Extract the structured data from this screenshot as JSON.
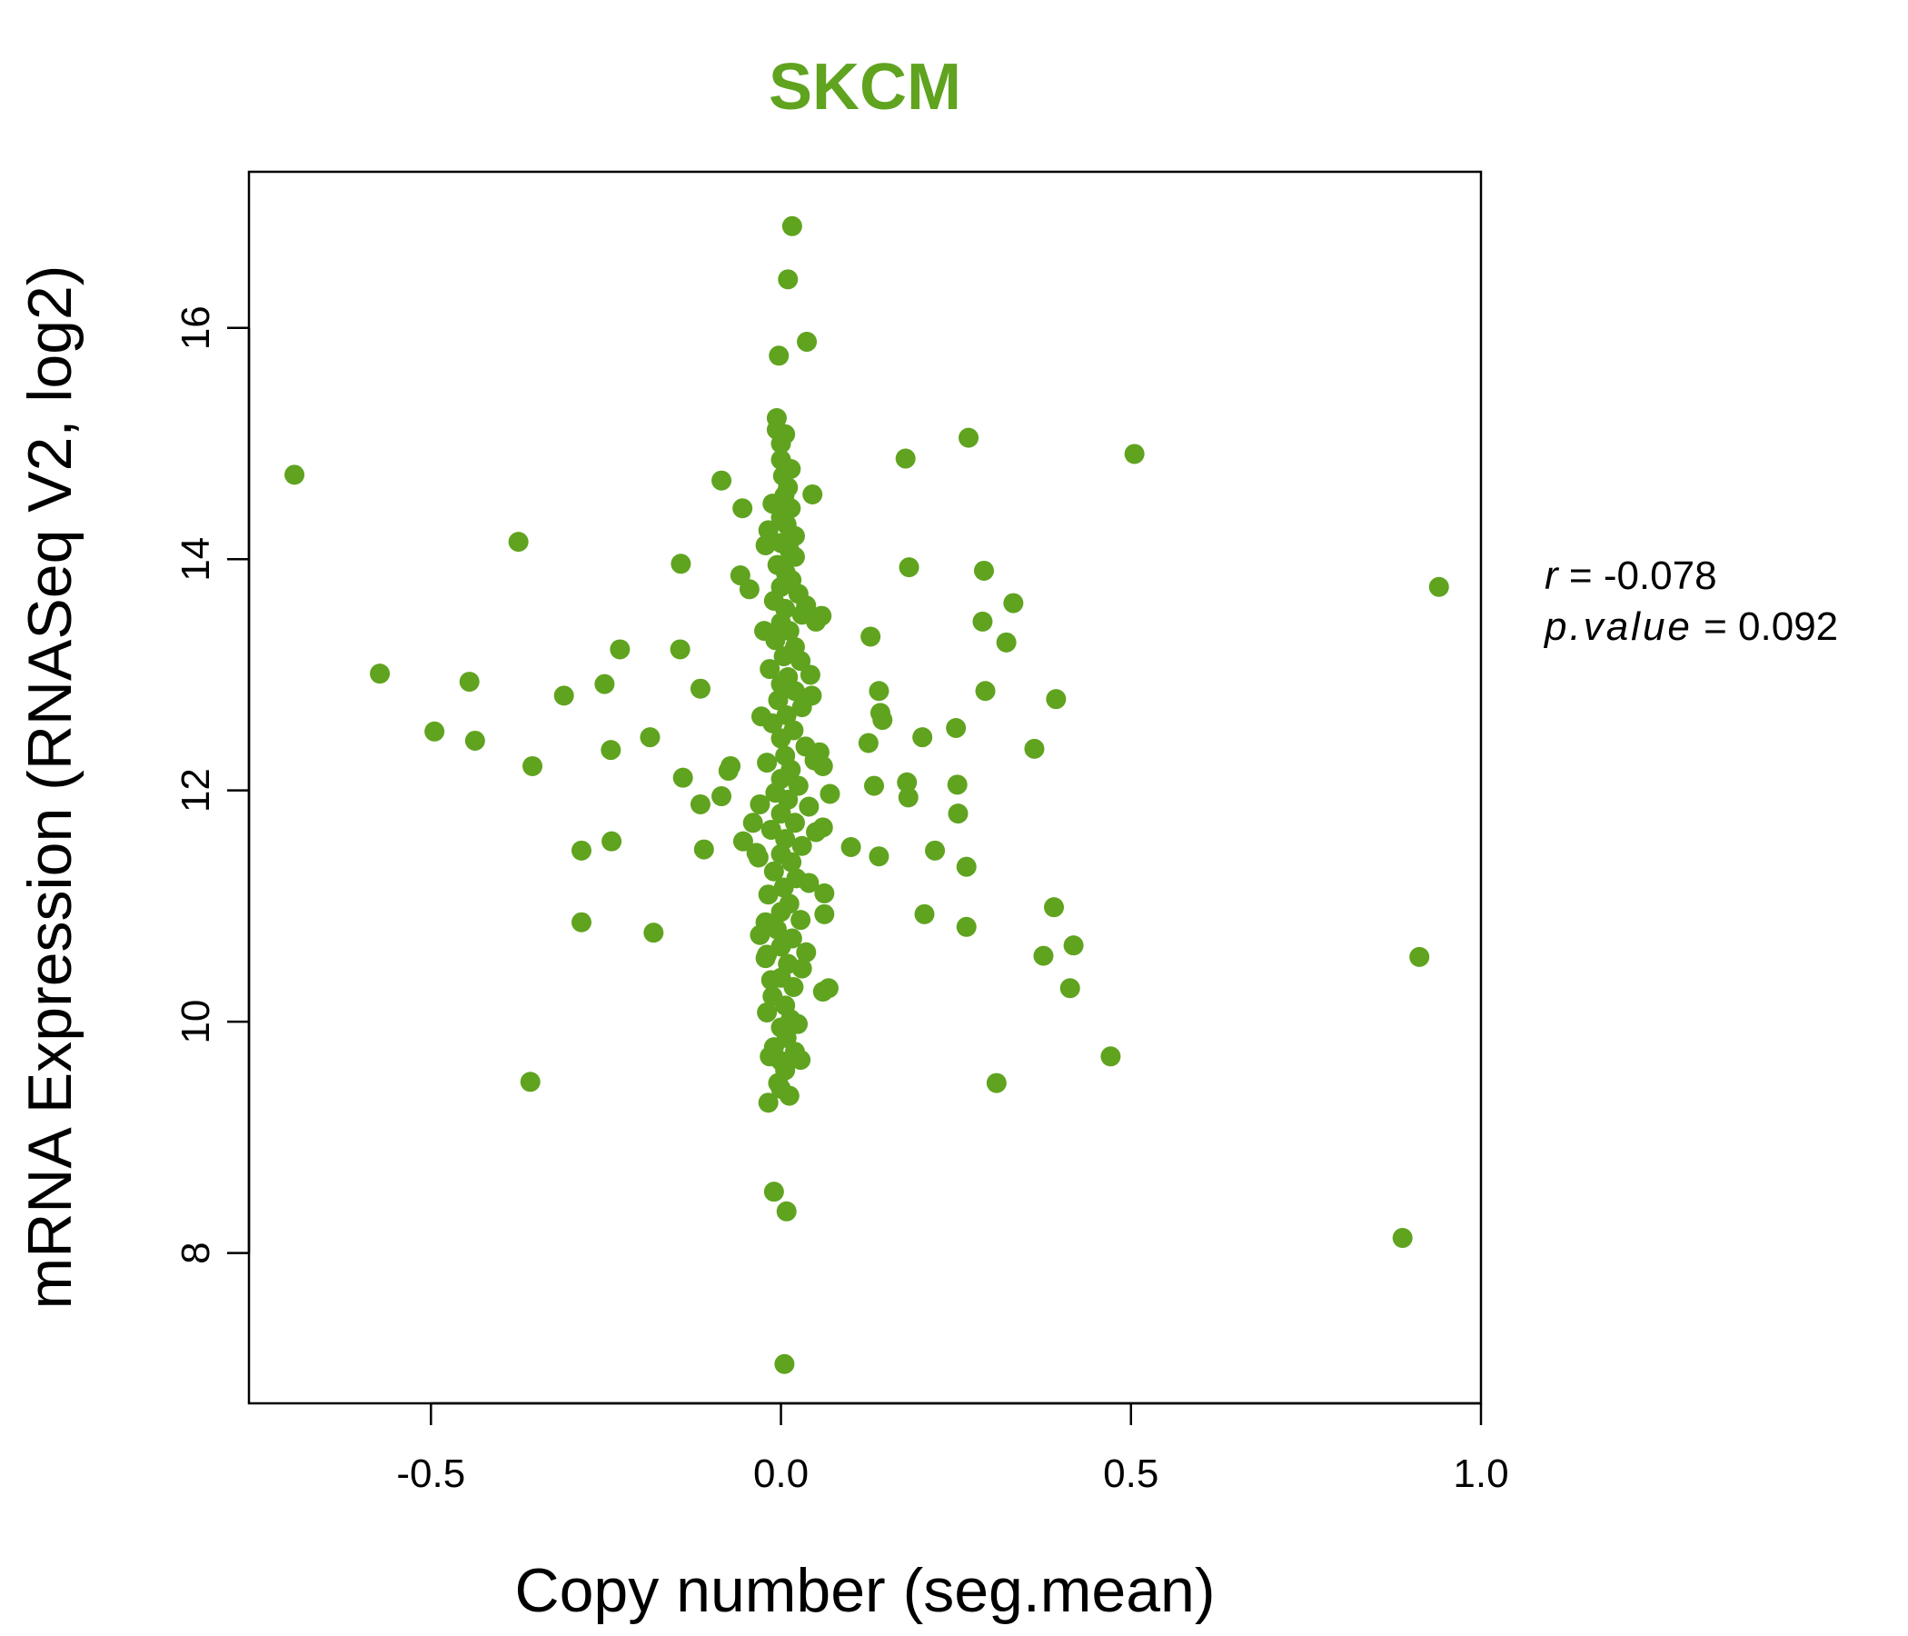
{
  "chart_data": {
    "type": "scatter",
    "title": "SKCM",
    "title_color": "#5fa31f",
    "point_color": "#5fa31f",
    "xlabel": "Copy number (seg.mean)",
    "ylabel": "mRNA Expression (RNASeq V2, log2)",
    "xlim": [
      -0.76,
      1.0
    ],
    "ylim": [
      6.7,
      17.35
    ],
    "x_ticks": [
      -0.5,
      0.0,
      0.5,
      1.0
    ],
    "x_tick_labels": [
      "-0.5",
      "0.0",
      "0.5",
      "1.0"
    ],
    "y_ticks": [
      8,
      10,
      12,
      14,
      16
    ],
    "y_tick_labels": [
      "8",
      "10",
      "12",
      "14",
      "16"
    ],
    "stats": {
      "r_label": "r",
      "r_value": "-0.078",
      "p_label": "p.value",
      "p_value": "0.092"
    },
    "points": [
      [
        0.016,
        16.88
      ],
      [
        0.01,
        16.42
      ],
      [
        0.037,
        15.88
      ],
      [
        -0.003,
        15.76
      ],
      [
        -0.006,
        15.22
      ],
      [
        0.006,
        15.08
      ],
      [
        0.0,
        15.0
      ],
      [
        0.0,
        14.86
      ],
      [
        0.003,
        14.72
      ],
      [
        0.01,
        14.62
      ],
      [
        0.005,
        14.55
      ],
      [
        -0.012,
        14.48
      ],
      [
        0.014,
        14.44
      ],
      [
        0.0,
        14.36
      ],
      [
        0.008,
        14.3
      ],
      [
        -0.018,
        14.25
      ],
      [
        0.02,
        14.2
      ],
      [
        0.0,
        14.14
      ],
      [
        0.012,
        14.08
      ],
      [
        0.02,
        14.02
      ],
      [
        -0.005,
        13.95
      ],
      [
        0.007,
        13.88
      ],
      [
        0.015,
        13.82
      ],
      [
        0.0,
        13.76
      ],
      [
        0.025,
        13.7
      ],
      [
        -0.01,
        13.64
      ],
      [
        0.006,
        13.57
      ],
      [
        0.03,
        13.52
      ],
      [
        0.0,
        13.45
      ],
      [
        0.012,
        13.38
      ],
      [
        -0.008,
        13.3
      ],
      [
        0.02,
        13.24
      ],
      [
        0.004,
        13.16
      ],
      [
        0.028,
        13.12
      ],
      [
        -0.016,
        13.05
      ],
      [
        0.01,
        12.98
      ],
      [
        0.042,
        13.0
      ],
      [
        0.0,
        12.92
      ],
      [
        0.02,
        12.86
      ],
      [
        -0.004,
        12.78
      ],
      [
        0.03,
        12.72
      ],
      [
        0.008,
        12.65
      ],
      [
        -0.012,
        12.58
      ],
      [
        0.018,
        12.52
      ],
      [
        0.0,
        12.45
      ],
      [
        0.035,
        12.38
      ],
      [
        0.006,
        12.3
      ],
      [
        -0.02,
        12.24
      ],
      [
        0.014,
        12.18
      ],
      [
        0.0,
        12.1
      ],
      [
        0.025,
        12.04
      ],
      [
        -0.008,
        11.98
      ],
      [
        0.01,
        11.92
      ],
      [
        0.04,
        11.86
      ],
      [
        0.0,
        11.8
      ],
      [
        0.02,
        11.72
      ],
      [
        -0.014,
        11.66
      ],
      [
        0.006,
        11.58
      ],
      [
        0.03,
        11.52
      ],
      [
        0.0,
        11.45
      ],
      [
        0.015,
        11.38
      ],
      [
        -0.01,
        11.3
      ],
      [
        0.022,
        11.24
      ],
      [
        0.004,
        11.16
      ],
      [
        -0.018,
        11.1
      ],
      [
        0.012,
        11.02
      ],
      [
        0.0,
        10.95
      ],
      [
        0.028,
        10.88
      ],
      [
        -0.006,
        10.8
      ],
      [
        0.016,
        10.72
      ],
      [
        0.0,
        10.65
      ],
      [
        -0.02,
        10.58
      ],
      [
        0.01,
        10.5
      ],
      [
        0.03,
        10.46
      ],
      [
        0.0,
        10.38
      ],
      [
        0.018,
        10.3
      ],
      [
        -0.012,
        10.22
      ],
      [
        0.006,
        10.14
      ],
      [
        -0.02,
        10.08
      ],
      [
        0.014,
        10.02
      ],
      [
        0.0,
        9.95
      ],
      [
        0.008,
        9.86
      ],
      [
        -0.01,
        9.78
      ],
      [
        0.02,
        9.74
      ],
      [
        0.0,
        9.66
      ],
      [
        0.028,
        9.67
      ],
      [
        0.006,
        9.58
      ],
      [
        -0.004,
        9.47
      ],
      [
        0.012,
        9.36
      ],
      [
        -0.018,
        9.3
      ],
      [
        0.0,
        9.42
      ],
      [
        -0.006,
        15.12
      ],
      [
        0.014,
        14.78
      ],
      [
        -0.022,
        14.12
      ],
      [
        0.036,
        13.6
      ],
      [
        -0.024,
        13.38
      ],
      [
        0.044,
        12.82
      ],
      [
        -0.028,
        12.64
      ],
      [
        0.048,
        12.26
      ],
      [
        -0.03,
        11.88
      ],
      [
        0.05,
        11.64
      ],
      [
        -0.032,
        11.42
      ],
      [
        0.04,
        11.2
      ],
      [
        -0.022,
        10.86
      ],
      [
        0.036,
        10.6
      ],
      [
        -0.014,
        10.36
      ],
      [
        0.024,
        9.98
      ],
      [
        -0.016,
        9.7
      ],
      [
        -0.01,
        8.53
      ],
      [
        0.008,
        8.36
      ],
      [
        0.005,
        7.04
      ],
      [
        -0.695,
        14.73
      ],
      [
        -0.573,
        13.01
      ],
      [
        -0.495,
        12.51
      ],
      [
        -0.445,
        12.94
      ],
      [
        -0.437,
        12.43
      ],
      [
        -0.375,
        14.15
      ],
      [
        -0.355,
        12.21
      ],
      [
        -0.358,
        9.48
      ],
      [
        -0.31,
        12.82
      ],
      [
        -0.285,
        11.48
      ],
      [
        -0.285,
        10.86
      ],
      [
        -0.252,
        12.92
      ],
      [
        -0.243,
        12.35
      ],
      [
        -0.242,
        11.56
      ],
      [
        -0.23,
        13.22
      ],
      [
        -0.187,
        12.46
      ],
      [
        -0.182,
        10.77
      ],
      [
        -0.143,
        13.96
      ],
      [
        -0.144,
        13.22
      ],
      [
        -0.14,
        12.11
      ],
      [
        -0.115,
        12.88
      ],
      [
        -0.115,
        11.88
      ],
      [
        -0.11,
        11.49
      ],
      [
        -0.085,
        14.68
      ],
      [
        -0.085,
        11.95
      ],
      [
        -0.075,
        12.17
      ],
      [
        -0.072,
        12.21
      ],
      [
        -0.058,
        13.86
      ],
      [
        -0.055,
        14.44
      ],
      [
        -0.054,
        11.56
      ],
      [
        -0.045,
        13.74
      ],
      [
        -0.04,
        11.72
      ],
      [
        -0.035,
        11.46
      ],
      [
        -0.03,
        10.75
      ],
      [
        -0.022,
        10.55
      ],
      [
        0.045,
        14.56
      ],
      [
        0.05,
        13.46
      ],
      [
        0.058,
        13.51
      ],
      [
        0.055,
        12.33
      ],
      [
        0.06,
        12.21
      ],
      [
        0.06,
        11.68
      ],
      [
        0.06,
        10.26
      ],
      [
        0.062,
        11.11
      ],
      [
        0.062,
        10.93
      ],
      [
        0.07,
        11.97
      ],
      [
        0.068,
        10.29
      ],
      [
        0.1,
        11.51
      ],
      [
        0.125,
        12.41
      ],
      [
        0.128,
        13.33
      ],
      [
        0.133,
        12.04
      ],
      [
        0.14,
        12.86
      ],
      [
        0.142,
        12.67
      ],
      [
        0.145,
        12.61
      ],
      [
        0.14,
        11.43
      ],
      [
        0.178,
        14.87
      ],
      [
        0.18,
        12.07
      ],
      [
        0.182,
        11.94
      ],
      [
        0.183,
        13.93
      ],
      [
        0.202,
        12.46
      ],
      [
        0.205,
        10.93
      ],
      [
        0.22,
        11.48
      ],
      [
        0.25,
        12.54
      ],
      [
        0.252,
        12.05
      ],
      [
        0.253,
        11.8
      ],
      [
        0.265,
        11.34
      ],
      [
        0.268,
        15.05
      ],
      [
        0.265,
        10.82
      ],
      [
        0.29,
        13.9
      ],
      [
        0.288,
        13.46
      ],
      [
        0.292,
        12.86
      ],
      [
        0.308,
        9.47
      ],
      [
        0.322,
        13.28
      ],
      [
        0.332,
        13.62
      ],
      [
        0.362,
        12.36
      ],
      [
        0.375,
        10.57
      ],
      [
        0.393,
        12.79
      ],
      [
        0.39,
        10.99
      ],
      [
        0.413,
        10.29
      ],
      [
        0.418,
        10.66
      ],
      [
        0.471,
        9.7
      ],
      [
        0.505,
        14.91
      ],
      [
        0.888,
        8.13
      ],
      [
        0.912,
        10.56
      ],
      [
        0.94,
        13.76
      ]
    ]
  }
}
